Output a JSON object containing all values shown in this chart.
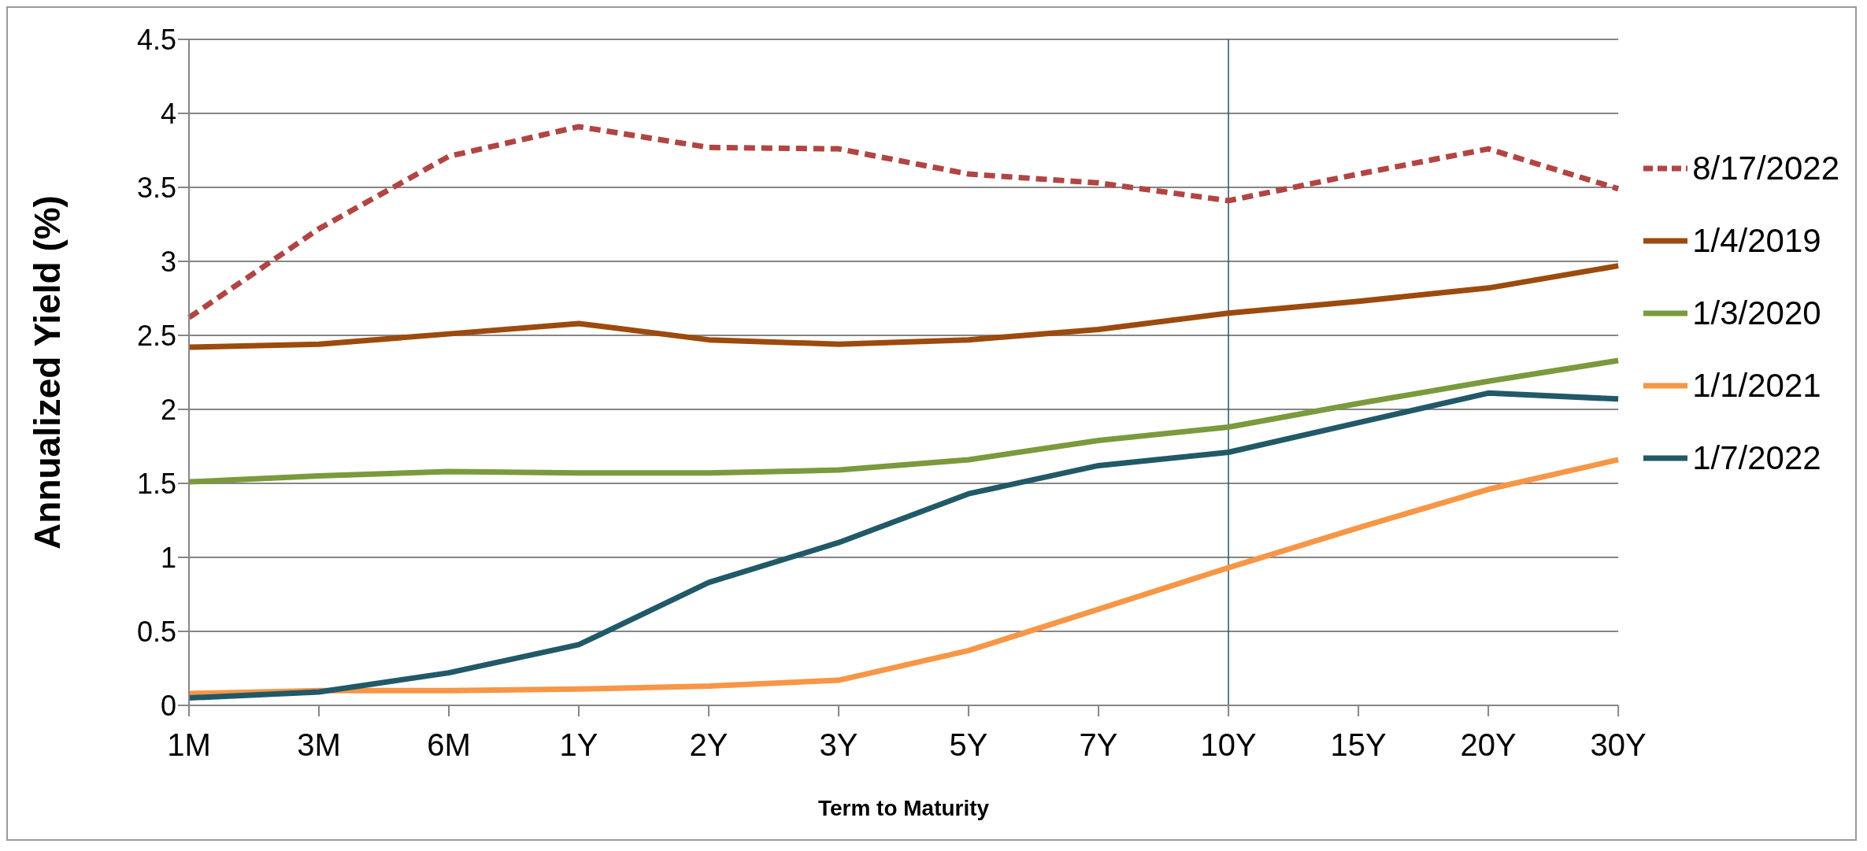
{
  "chart_data": {
    "type": "line",
    "xlabel": "Term to Maturity",
    "ylabel": "Annualized Yield (%)",
    "categories": [
      "1M",
      "3M",
      "6M",
      "1Y",
      "2Y",
      "3Y",
      "5Y",
      "7Y",
      "10Y",
      "15Y",
      "20Y",
      "30Y"
    ],
    "series": [
      {
        "name": "8/17/2022",
        "color": "#b04543",
        "line_style": "dashed",
        "values": [
          2.62,
          3.22,
          3.71,
          3.91,
          3.77,
          3.76,
          3.59,
          3.53,
          3.41,
          3.59,
          3.76,
          3.49
        ]
      },
      {
        "name": "1/4/2019",
        "color": "#9c4a0e",
        "values": [
          2.42,
          2.44,
          2.51,
          2.58,
          2.47,
          2.44,
          2.47,
          2.54,
          2.65,
          2.73,
          2.82,
          2.97
        ]
      },
      {
        "name": "1/3/2020",
        "color": "#7a9a3d",
        "values": [
          1.51,
          1.55,
          1.58,
          1.57,
          1.57,
          1.59,
          1.66,
          1.79,
          1.88,
          2.04,
          2.19,
          2.33
        ]
      },
      {
        "name": "1/1/2021",
        "color": "#f79646",
        "values": [
          0.08,
          0.1,
          0.1,
          0.11,
          0.13,
          0.17,
          0.37,
          0.65,
          0.93,
          1.2,
          1.46,
          1.66
        ]
      },
      {
        "name": "1/7/2022",
        "color": "#215968",
        "values": [
          0.05,
          0.09,
          0.22,
          0.41,
          0.83,
          1.1,
          1.43,
          1.62,
          1.71,
          1.91,
          2.11,
          2.07
        ]
      }
    ],
    "ylim": [
      0,
      4.5
    ],
    "yticks": [
      0,
      0.5,
      1,
      1.5,
      2,
      2.5,
      3,
      3.5,
      4,
      4.5
    ],
    "ref_lines": [
      {
        "axis": "x",
        "value": "10Y",
        "color": "#215968"
      }
    ],
    "grid": "y",
    "legend": "right",
    "marker": "none",
    "line_style": "solid"
  }
}
